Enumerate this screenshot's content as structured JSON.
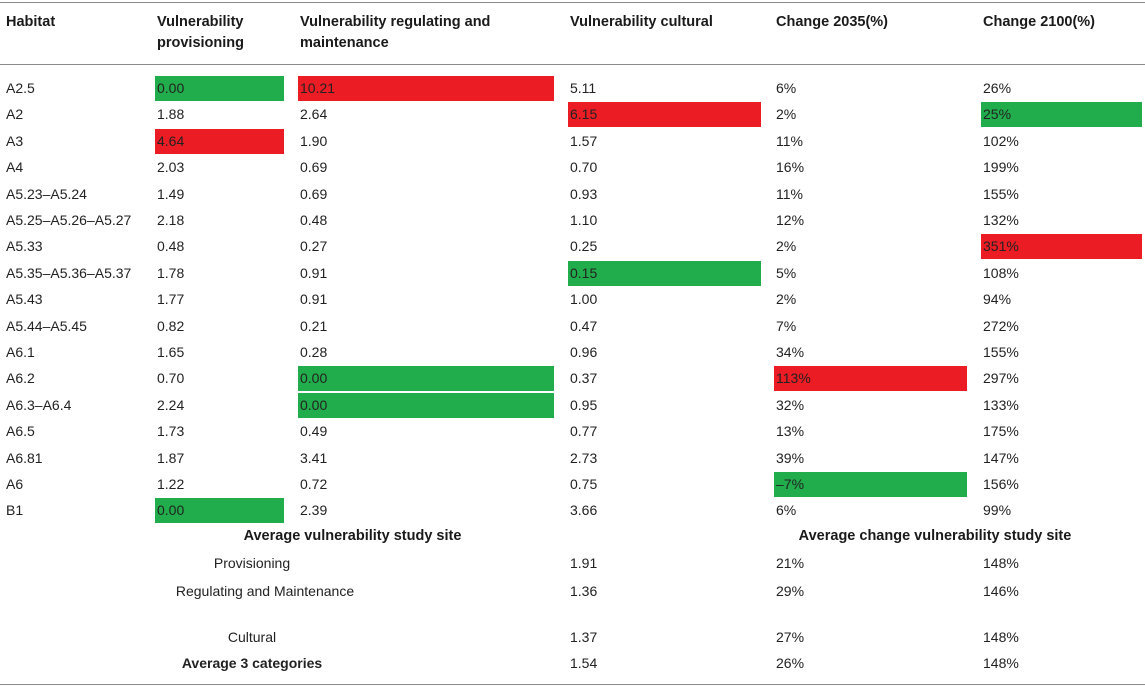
{
  "colors": {
    "high": "#ec1c24",
    "low": "#21ad4b"
  },
  "headers": {
    "habitat": "Habitat",
    "prov": "Vulnerability provisioning",
    "reg": "Vulnerability regulating and maintenance",
    "cult": "Vulnerability cultural",
    "c2035": "Change 2035(%)",
    "c2100": "Change 2100(%)"
  },
  "rows": [
    {
      "habitat": "A2.5",
      "prov": "0.00",
      "reg": "10.21",
      "cult": "5.11",
      "c2035": "6%",
      "c2100": "26%"
    },
    {
      "habitat": "A2",
      "prov": "1.88",
      "reg": "2.64",
      "cult": "6.15",
      "c2035": "2%",
      "c2100": "25%"
    },
    {
      "habitat": "A3",
      "prov": "4.64",
      "reg": "1.90",
      "cult": "1.57",
      "c2035": "11%",
      "c2100": "102%"
    },
    {
      "habitat": "A4",
      "prov": "2.03",
      "reg": "0.69",
      "cult": "0.70",
      "c2035": "16%",
      "c2100": "199%"
    },
    {
      "habitat": "A5.23–A5.24",
      "prov": "1.49",
      "reg": "0.69",
      "cult": "0.93",
      "c2035": "11%",
      "c2100": "155%"
    },
    {
      "habitat": "A5.25–A5.26–A5.27",
      "prov": "2.18",
      "reg": "0.48",
      "cult": "1.10",
      "c2035": "12%",
      "c2100": "132%"
    },
    {
      "habitat": "A5.33",
      "prov": "0.48",
      "reg": "0.27",
      "cult": "0.25",
      "c2035": "2%",
      "c2100": "351%"
    },
    {
      "habitat": "A5.35–A5.36–A5.37",
      "prov": "1.78",
      "reg": "0.91",
      "cult": "0.15",
      "c2035": "5%",
      "c2100": "108%"
    },
    {
      "habitat": "A5.43",
      "prov": "1.77",
      "reg": "0.91",
      "cult": "1.00",
      "c2035": "2%",
      "c2100": "94%"
    },
    {
      "habitat": "A5.44–A5.45",
      "prov": "0.82",
      "reg": "0.21",
      "cult": "0.47",
      "c2035": "7%",
      "c2100": "272%"
    },
    {
      "habitat": "A6.1",
      "prov": "1.65",
      "reg": "0.28",
      "cult": "0.96",
      "c2035": "34%",
      "c2100": "155%"
    },
    {
      "habitat": "A6.2",
      "prov": "0.70",
      "reg": "0.00",
      "cult": "0.37",
      "c2035": "113%",
      "c2100": "297%"
    },
    {
      "habitat": "A6.3–A6.4",
      "prov": "2.24",
      "reg": "0.00",
      "cult": "0.95",
      "c2035": "32%",
      "c2100": "133%"
    },
    {
      "habitat": "A6.5",
      "prov": "1.73",
      "reg": "0.49",
      "cult": "0.77",
      "c2035": "13%",
      "c2100": "175%"
    },
    {
      "habitat": "A6.81",
      "prov": "1.87",
      "reg": "3.41",
      "cult": "2.73",
      "c2035": "39%",
      "c2100": "147%"
    },
    {
      "habitat": "A6",
      "prov": "1.22",
      "reg": "0.72",
      "cult": "0.75",
      "c2035": "–7%",
      "c2100": "156%"
    },
    {
      "habitat": "B1",
      "prov": "0.00",
      "reg": "2.39",
      "cult": "3.66",
      "c2035": "6%",
      "c2100": "99%"
    }
  ],
  "highlights": {
    "red": [
      [
        0,
        "reg"
      ],
      [
        1,
        "cult"
      ],
      [
        2,
        "prov"
      ],
      [
        6,
        "c2100"
      ],
      [
        11,
        "c2035"
      ]
    ],
    "green": [
      [
        0,
        "prov"
      ],
      [
        1,
        "c2100"
      ],
      [
        7,
        "cult"
      ],
      [
        11,
        "reg"
      ],
      [
        12,
        "reg"
      ],
      [
        15,
        "c2035"
      ],
      [
        16,
        "prov"
      ]
    ]
  },
  "summary": {
    "left_title": "Average vulnerability study site",
    "right_title": "Average change vulnerability study site",
    "rows": [
      {
        "label": "Provisioning",
        "cult": "1.91",
        "c2035": "21%",
        "c2100": "148%"
      },
      {
        "label": "Regulating and Maintenance",
        "cult": "1.36",
        "c2035": "29%",
        "c2100": "146%"
      },
      {
        "label": "Cultural",
        "cult": "1.37",
        "c2035": "27%",
        "c2100": "148%"
      },
      {
        "label": "Average 3 categories",
        "cult": "1.54",
        "c2035": "26%",
        "c2100": "148%"
      }
    ]
  }
}
